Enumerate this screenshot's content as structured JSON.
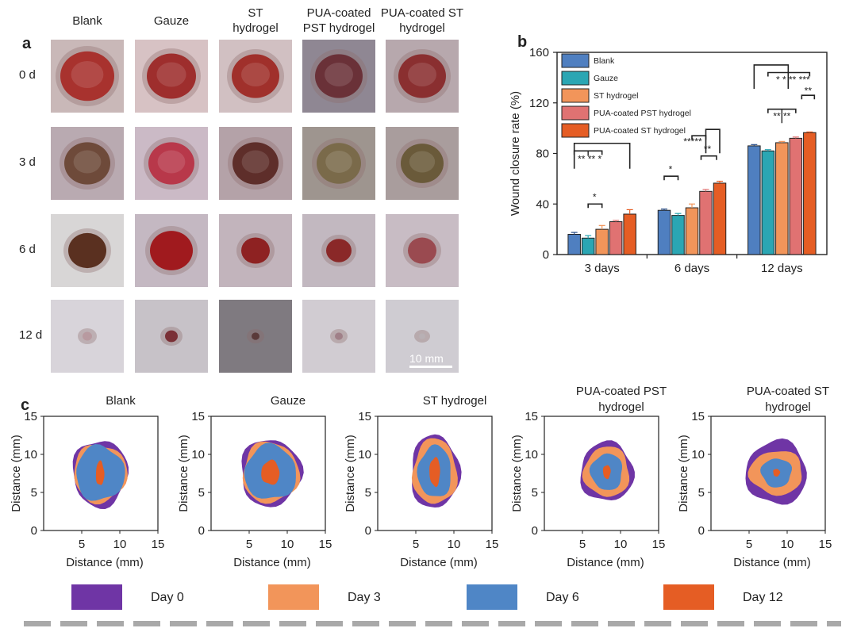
{
  "panels": {
    "a": "a",
    "b": "b",
    "c": "c"
  },
  "panel_a": {
    "columns": [
      [
        "Blank"
      ],
      [
        "Gauze"
      ],
      [
        "ST",
        "hydrogel"
      ],
      [
        "PUA-coated",
        "PST hydrogel"
      ],
      [
        "PUA-coated ST",
        "hydrogel"
      ]
    ],
    "rows": [
      "0 d",
      "3 d",
      "6 d",
      "12 d"
    ],
    "scale_bar": "10 mm"
  },
  "chart_data": [
    {
      "id": "closure",
      "type": "bar",
      "ylabel": "Wound closure rate (%)",
      "ylim": [
        0,
        160
      ],
      "yticks": [
        0,
        40,
        80,
        120,
        160
      ],
      "categories": [
        "3 days",
        "6 days",
        "12 days"
      ],
      "series": [
        {
          "name": "Blank",
          "color": "#4f7fc0",
          "values": [
            16,
            35,
            86
          ],
          "errors": [
            1.5,
            1,
            1
          ]
        },
        {
          "name": "Gauze",
          "color": "#2ba6b3",
          "values": [
            13,
            31,
            82
          ],
          "errors": [
            2,
            1.5,
            1
          ]
        },
        {
          "name": "ST hydrogel",
          "color": "#f2955a",
          "values": [
            20,
            37,
            88.5
          ],
          "errors": [
            3,
            3,
            1
          ]
        },
        {
          "name": "PUA-coated PST hydrogel",
          "color": "#e07272",
          "values": [
            26,
            50,
            92
          ],
          "errors": [
            1,
            1.5,
            1
          ]
        },
        {
          "name": "PUA-coated ST hydrogel",
          "color": "#e55d24",
          "values": [
            32,
            56.5,
            96.5
          ],
          "errors": [
            3.5,
            1.5,
            0.5
          ]
        }
      ],
      "significance": [
        "** ** *",
        "*",
        "*",
        "*****",
        "**",
        "* * ** ***",
        "**",
        "** **"
      ]
    },
    {
      "id": "traces",
      "type": "area",
      "xlabel": "Distance (mm)",
      "ylabel": "Distance (mm)",
      "xlim": [
        0,
        15
      ],
      "ylim": [
        0,
        15
      ],
      "xticks": [
        5,
        10,
        15
      ],
      "yticks": [
        0,
        5,
        10,
        15
      ],
      "days": [
        {
          "name": "Day 0",
          "color": "#6f35a5"
        },
        {
          "name": "Day 3",
          "color": "#f2955a"
        },
        {
          "name": "Day 6",
          "color": "#4f86c6"
        },
        {
          "name": "Day 12",
          "color": "#e55d24"
        }
      ],
      "plots": [
        {
          "title": [
            "Blank"
          ],
          "center": [
            7.4,
            7.5
          ],
          "radii": [
            [
              3.6,
              4.4
            ],
            [
              3.5,
              3.8
            ],
            [
              3.2,
              3.6
            ],
            [
              0.55,
              1.6
            ]
          ]
        },
        {
          "title": [
            "Gauze"
          ],
          "center": [
            7.8,
            7.6
          ],
          "radii": [
            [
              4.0,
              4.4
            ],
            [
              3.7,
              4.0
            ],
            [
              3.4,
              3.6
            ],
            [
              1.2,
              1.6
            ]
          ]
        },
        {
          "title": [
            "ST hydrogel"
          ],
          "center": [
            7.5,
            7.7
          ],
          "radii": [
            [
              3.2,
              4.8
            ],
            [
              2.9,
              4.3
            ],
            [
              2.2,
              3.4
            ],
            [
              0.7,
              1.9
            ]
          ]
        },
        {
          "title": [
            "PUA-coated PST",
            "hydrogel"
          ],
          "center": [
            8.2,
            7.7
          ],
          "radii": [
            [
              3.5,
              3.9
            ],
            [
              3.0,
              3.3
            ],
            [
              2.1,
              2.4
            ],
            [
              0.5,
              0.9
            ]
          ]
        },
        {
          "title": [
            "PUA-coated ST",
            "hydrogel"
          ],
          "center": [
            8.6,
            7.6
          ],
          "radii": [
            [
              4.0,
              4.2
            ],
            [
              3.5,
              2.9
            ],
            [
              2.0,
              1.9
            ],
            [
              0.45,
              0.5
            ]
          ]
        }
      ]
    }
  ]
}
